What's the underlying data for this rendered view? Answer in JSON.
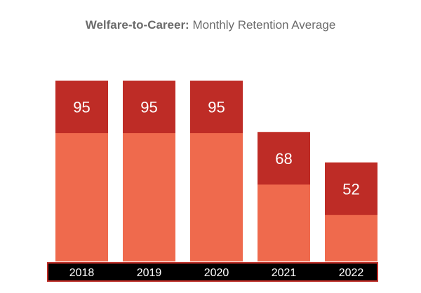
{
  "title": {
    "bold": "Welfare-to-Career:",
    "regular": " Monthly Retention Average"
  },
  "chart_data": {
    "type": "bar",
    "title": "Welfare-to-Career: Monthly Retention Average",
    "categories": [
      "2018",
      "2019",
      "2020",
      "2021",
      "2022"
    ],
    "values": [
      95,
      95,
      95,
      68,
      52
    ],
    "ylim": [
      0,
      100
    ],
    "xlabel": "",
    "ylabel": "",
    "grid": false,
    "legend": "none",
    "colors": {
      "bar_top": "#be2c26",
      "bar_base": "#ef6a4d",
      "axis_band": "#000000",
      "axis_band_border": "#be2c26",
      "value_label": "#ffffff",
      "tick_label": "#ffffff"
    }
  }
}
